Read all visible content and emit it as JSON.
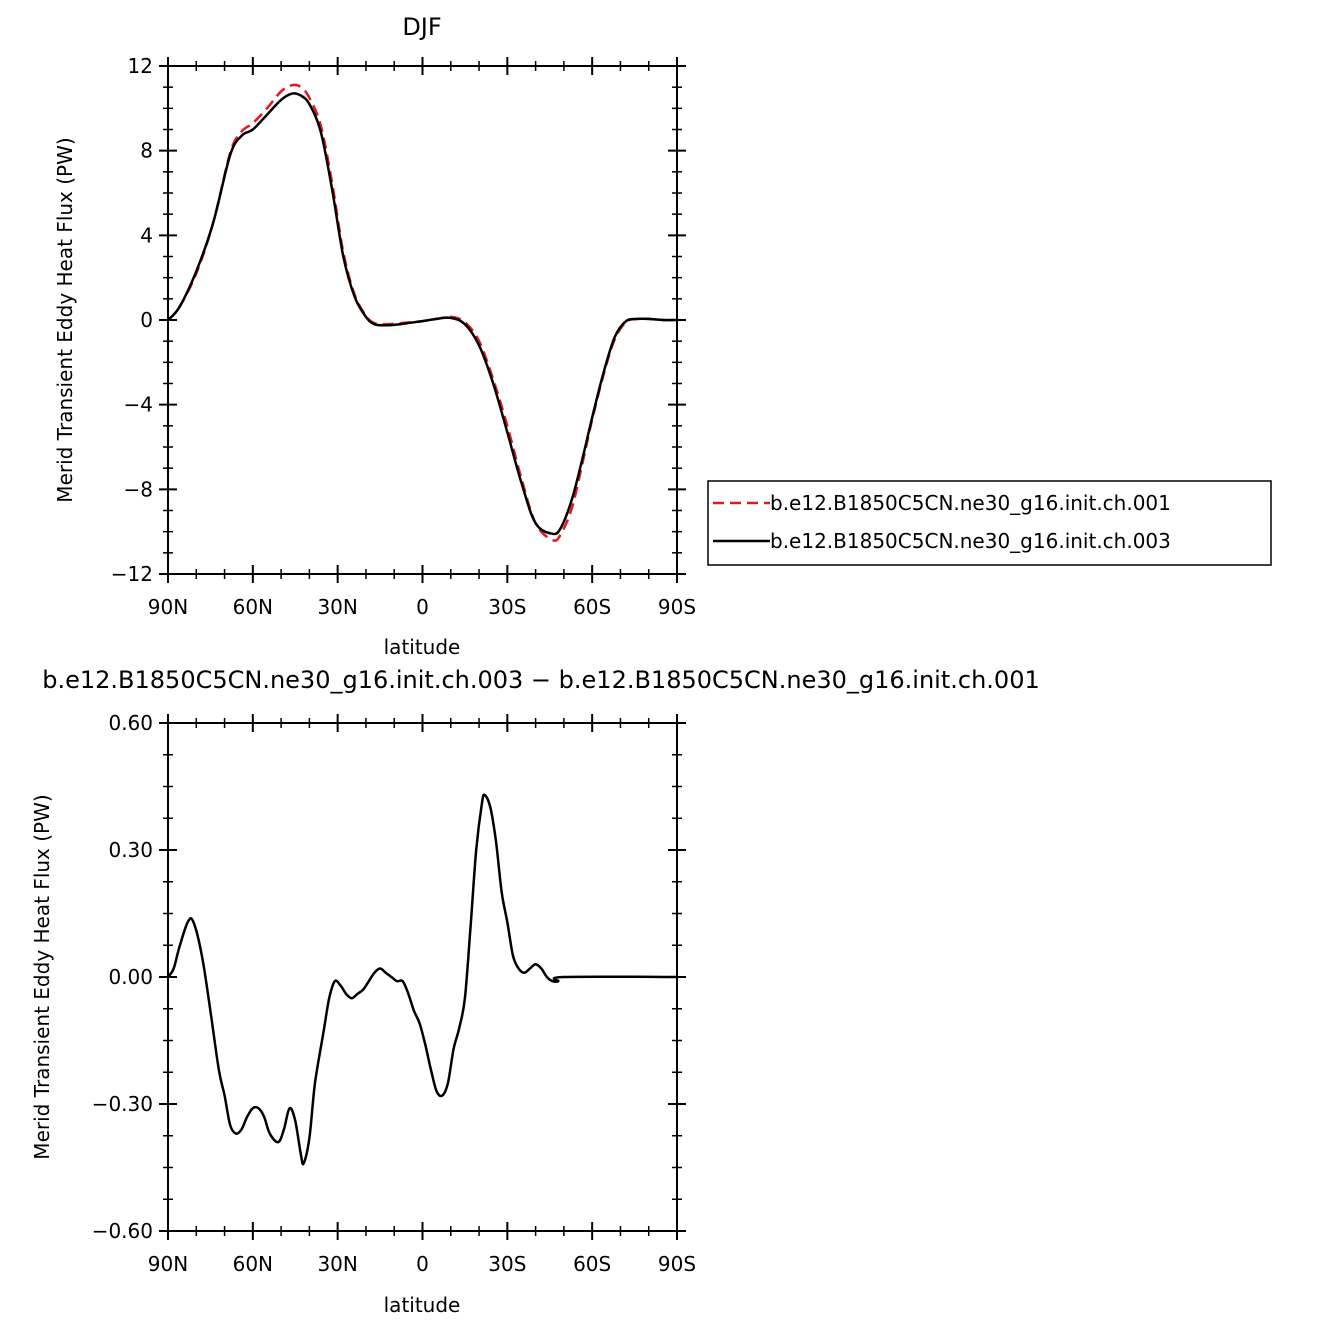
{
  "chart_data": [
    {
      "type": "line",
      "title": "DJF",
      "xlabel": "latitude",
      "ylabel": "Merid Transient Eddy Heat Flux (PW)",
      "xlim": [
        90,
        -90
      ],
      "ylim": [
        -12,
        12
      ],
      "x_ticks": [
        {
          "value": 90,
          "label": "90N"
        },
        {
          "value": 60,
          "label": "60N"
        },
        {
          "value": 30,
          "label": "30N"
        },
        {
          "value": 0,
          "label": "0"
        },
        {
          "value": -30,
          "label": "30S"
        },
        {
          "value": -60,
          "label": "60S"
        },
        {
          "value": -90,
          "label": "90S"
        }
      ],
      "y_ticks": [
        {
          "value": 12,
          "label": "12"
        },
        {
          "value": 8,
          "label": "8"
        },
        {
          "value": 4,
          "label": "4"
        },
        {
          "value": 0,
          "label": "0"
        },
        {
          "value": -4,
          "label": "−4"
        },
        {
          "value": -8,
          "label": "−8"
        },
        {
          "value": -12,
          "label": "−12"
        }
      ],
      "legend": "right",
      "series": [
        {
          "name": "b.e12.B1850C5CN.ne30_g16.init.ch.001",
          "color": "#e8161b",
          "dash": "dashed",
          "points": [
            [
              90,
              0
            ],
            [
              86,
              0.6
            ],
            [
              80,
              2.2
            ],
            [
              74,
              4.6
            ],
            [
              68,
              7.9
            ],
            [
              64,
              8.9
            ],
            [
              60,
              9.3
            ],
            [
              55,
              10
            ],
            [
              50,
              10.8
            ],
            [
              46,
              11.1
            ],
            [
              43,
              11
            ],
            [
              40,
              10.5
            ],
            [
              36,
              9.2
            ],
            [
              32,
              6.5
            ],
            [
              28,
              3.2
            ],
            [
              24,
              1.2
            ],
            [
              20,
              0.2
            ],
            [
              17,
              -0.15
            ],
            [
              13,
              -0.2
            ],
            [
              8,
              -0.15
            ],
            [
              0,
              -0.05
            ],
            [
              -5,
              0.05
            ],
            [
              -10,
              0.15
            ],
            [
              -15,
              -0.1
            ],
            [
              -20,
              -1
            ],
            [
              -25,
              -2.8
            ],
            [
              -30,
              -5
            ],
            [
              -35,
              -7.5
            ],
            [
              -40,
              -9.6
            ],
            [
              -46,
              -10.4
            ],
            [
              -49,
              -10.1
            ],
            [
              -53,
              -8.8
            ],
            [
              -57,
              -6.5
            ],
            [
              -60,
              -4.7
            ],
            [
              -64,
              -2.6
            ],
            [
              -68,
              -0.9
            ],
            [
              -72,
              -0.1
            ],
            [
              -76,
              0.05
            ],
            [
              -80,
              0.05
            ],
            [
              -85,
              0
            ],
            [
              -90,
              0
            ]
          ]
        },
        {
          "name": "b.e12.B1850C5CN.ne30_g16.init.ch.003",
          "color": "#000000",
          "dash": "solid",
          "points": [
            [
              90,
              0
            ],
            [
              86,
              0.6
            ],
            [
              80,
              2.3
            ],
            [
              74,
              4.6
            ],
            [
              68,
              7.8
            ],
            [
              64,
              8.7
            ],
            [
              60,
              9
            ],
            [
              55,
              9.7
            ],
            [
              50,
              10.4
            ],
            [
              46,
              10.7
            ],
            [
              43,
              10.6
            ],
            [
              40,
              10.2
            ],
            [
              36,
              8.9
            ],
            [
              32,
              6.2
            ],
            [
              28,
              3
            ],
            [
              24,
              1.1
            ],
            [
              20,
              0.15
            ],
            [
              17,
              -0.2
            ],
            [
              13,
              -0.25
            ],
            [
              8,
              -0.2
            ],
            [
              0,
              -0.05
            ],
            [
              -5,
              0.05
            ],
            [
              -10,
              0.1
            ],
            [
              -15,
              -0.2
            ],
            [
              -20,
              -1.2
            ],
            [
              -25,
              -3
            ],
            [
              -30,
              -5.3
            ],
            [
              -35,
              -7.7
            ],
            [
              -40,
              -9.6
            ],
            [
              -46,
              -10.1
            ],
            [
              -49,
              -9.8
            ],
            [
              -53,
              -8.4
            ],
            [
              -57,
              -6.3
            ],
            [
              -60,
              -4.6
            ],
            [
              -64,
              -2.5
            ],
            [
              -68,
              -0.8
            ],
            [
              -72,
              -0.05
            ],
            [
              -76,
              0.05
            ],
            [
              -80,
              0.05
            ],
            [
              -85,
              0
            ],
            [
              -90,
              0
            ]
          ]
        }
      ]
    },
    {
      "type": "line",
      "title": "b.e12.B1850C5CN.ne30_g16.init.ch.003 − b.e12.B1850C5CN.ne30_g16.init.ch.001",
      "xlabel": "latitude",
      "ylabel": "Merid Transient Eddy Heat Flux (PW)",
      "xlim": [
        90,
        -90
      ],
      "ylim": [
        -0.6,
        0.6
      ],
      "x_ticks": [
        {
          "value": 90,
          "label": "90N"
        },
        {
          "value": 60,
          "label": "60N"
        },
        {
          "value": 30,
          "label": "30N"
        },
        {
          "value": 0,
          "label": "0"
        },
        {
          "value": -30,
          "label": "30S"
        },
        {
          "value": -60,
          "label": "60S"
        },
        {
          "value": -90,
          "label": "90S"
        }
      ],
      "y_ticks": [
        {
          "value": 0.6,
          "label": "0.60"
        },
        {
          "value": 0.3,
          "label": "0.30"
        },
        {
          "value": 0,
          "label": "0.00"
        },
        {
          "value": -0.3,
          "label": "−0.30"
        },
        {
          "value": -0.6,
          "label": "−0.60"
        }
      ],
      "series": [
        {
          "color": "#000000",
          "dash": "solid",
          "points": [
            [
              90,
              0
            ],
            [
              88,
              0.02
            ],
            [
              86,
              0.07
            ],
            [
              83,
              0.13
            ],
            [
              81,
              0.13
            ],
            [
              78,
              0.05
            ],
            [
              75,
              -0.08
            ],
            [
              72,
              -0.22
            ],
            [
              70,
              -0.28
            ],
            [
              68,
              -0.35
            ],
            [
              66,
              -0.37
            ],
            [
              64,
              -0.36
            ],
            [
              62,
              -0.33
            ],
            [
              60,
              -0.31
            ],
            [
              58,
              -0.31
            ],
            [
              56,
              -0.33
            ],
            [
              54,
              -0.37
            ],
            [
              51,
              -0.39
            ],
            [
              49,
              -0.36
            ],
            [
              47,
              -0.31
            ],
            [
              45,
              -0.34
            ],
            [
              43,
              -0.42
            ],
            [
              42,
              -0.44
            ],
            [
              40,
              -0.38
            ],
            [
              38,
              -0.25
            ],
            [
              35,
              -0.13
            ],
            [
              33,
              -0.05
            ],
            [
              31,
              -0.01
            ],
            [
              29,
              -0.02
            ],
            [
              27,
              -0.04
            ],
            [
              25,
              -0.05
            ],
            [
              23,
              -0.04
            ],
            [
              21,
              -0.03
            ],
            [
              19,
              -0.01
            ],
            [
              17,
              0.01
            ],
            [
              15,
              0.02
            ],
            [
              13,
              0.01
            ],
            [
              11,
              0
            ],
            [
              9,
              -0.01
            ],
            [
              7,
              -0.01
            ],
            [
              5,
              -0.04
            ],
            [
              3,
              -0.08
            ],
            [
              1,
              -0.11
            ],
            [
              -1,
              -0.16
            ],
            [
              -3,
              -0.22
            ],
            [
              -5,
              -0.27
            ],
            [
              -7,
              -0.28
            ],
            [
              -9,
              -0.25
            ],
            [
              -11,
              -0.17
            ],
            [
              -13,
              -0.12
            ],
            [
              -15,
              -0.05
            ],
            [
              -17,
              0.12
            ],
            [
              -19,
              0.3
            ],
            [
              -21,
              0.41
            ],
            [
              -22,
              0.43
            ],
            [
              -24,
              0.4
            ],
            [
              -26,
              0.32
            ],
            [
              -28,
              0.2
            ],
            [
              -30,
              0.13
            ],
            [
              -32,
              0.05
            ],
            [
              -34,
              0.02
            ],
            [
              -36,
              0.01
            ],
            [
              -38,
              0.02
            ],
            [
              -40,
              0.03
            ],
            [
              -42,
              0.02
            ],
            [
              -44,
              0
            ],
            [
              -46,
              -0.01
            ],
            [
              -48,
              -0.01
            ],
            [
              -50,
              0
            ],
            [
              -90,
              0
            ]
          ]
        }
      ]
    }
  ]
}
